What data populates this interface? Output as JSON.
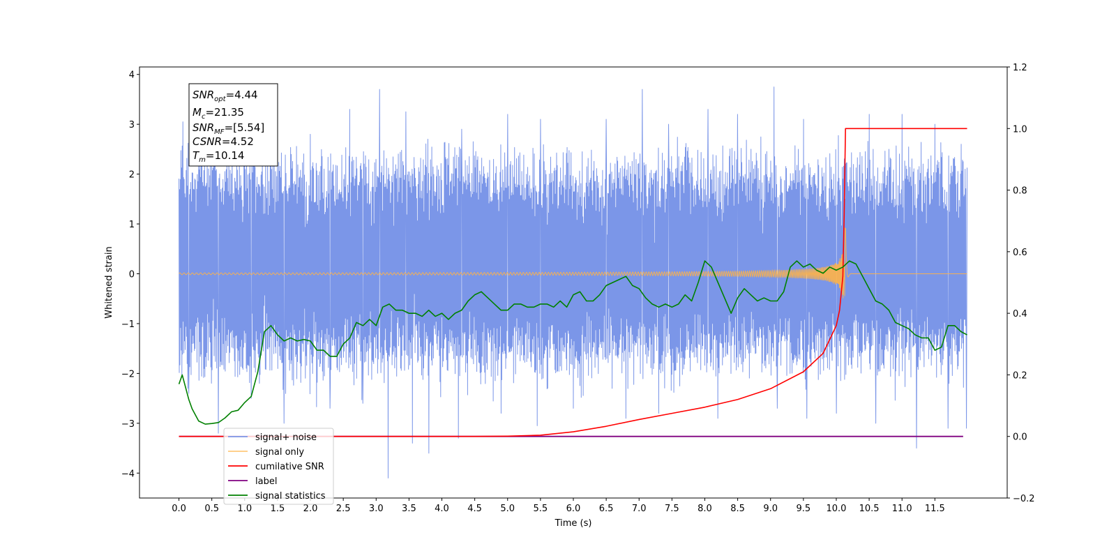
{
  "chart_data": {
    "type": "line",
    "xlabel": "Time (s)",
    "ylabel": "Whitened strain",
    "xlim": [
      -0.6,
      12.6
    ],
    "ylim": [
      -4.5,
      4.15
    ],
    "y2lim": [
      -0.2,
      1.2
    ],
    "x_ticks": [
      0.0,
      0.5,
      1.0,
      1.5,
      2.0,
      2.5,
      3.0,
      3.5,
      4.0,
      4.5,
      5.0,
      5.5,
      6.0,
      6.5,
      7.0,
      7.5,
      8.0,
      8.5,
      9.0,
      9.5,
      10.0,
      10.5,
      11.0,
      11.5
    ],
    "x_tick_labels": [
      "0.0",
      "0.5",
      "1.0",
      "1.5",
      "2.0",
      "2.5",
      "3.0",
      "3.5",
      "4.0",
      "4.5",
      "5.0",
      "5.5",
      "6.0",
      "6.5",
      "7.0",
      "7.5",
      "8.0",
      "8.5",
      "9.0",
      "9.5",
      "10.0",
      "10.5",
      "11.0",
      "11.5"
    ],
    "y_ticks": [
      -4,
      -3,
      -2,
      -1,
      0,
      1,
      2,
      3,
      4
    ],
    "y_tick_labels": [
      "−4",
      "−3",
      "−2",
      "−1",
      "0",
      "1",
      "2",
      "3",
      "4"
    ],
    "y2_ticks": [
      -0.2,
      0.0,
      0.2,
      0.4,
      0.6,
      0.8,
      1.0,
      1.2
    ],
    "y2_tick_labels": [
      "−0.2",
      "0.0",
      "0.2",
      "0.4",
      "0.6",
      "0.8",
      "1.0",
      "1.2"
    ],
    "grid": false,
    "legend_position": "lower-left",
    "info_box": {
      "snr_opt": {
        "symbol": "SNR",
        "sub": "opt",
        "value": "=4.44"
      },
      "mc": {
        "symbol": "M",
        "sub": "c",
        "value": "=21.35"
      },
      "snr_mf": {
        "symbol": "SNR",
        "sub": "MF",
        "value": "=[5.54]"
      },
      "csnr": {
        "symbol": "CSNR",
        "sub": "",
        "value": "=4.52"
      },
      "tm": {
        "symbol": "T",
        "sub": "m",
        "value": "=10.14"
      }
    },
    "series": [
      {
        "name": "signal+ noise",
        "color": "#7b96e8",
        "axis": "left",
        "t_range": [
          0.0,
          11.99
        ],
        "envelope_upper": [
          2.6,
          2.4,
          2.3,
          2.4,
          2.5,
          2.4,
          2.3,
          2.5,
          2.4,
          2.3,
          2.4,
          2.5
        ],
        "envelope_lower": [
          -2.0,
          -2.1,
          -2.2,
          -2.0,
          -2.1,
          -2.2,
          -2.0,
          -2.1,
          -2.1,
          -2.0,
          -2.1,
          -2.0
        ],
        "peaks_up": [
          [
            0.06,
            3.05
          ],
          [
            0.3,
            2.6
          ],
          [
            1.0,
            2.9
          ],
          [
            1.5,
            2.7
          ],
          [
            2.0,
            2.8
          ],
          [
            2.6,
            3.3
          ],
          [
            3.05,
            3.7
          ],
          [
            3.45,
            3.25
          ],
          [
            3.8,
            3.2
          ],
          [
            4.3,
            2.9
          ],
          [
            5.0,
            3.2
          ],
          [
            5.5,
            3.1
          ],
          [
            6.0,
            2.9
          ],
          [
            6.5,
            3.1
          ],
          [
            7.05,
            3.7
          ],
          [
            7.45,
            3.0
          ],
          [
            8.05,
            3.3
          ],
          [
            8.5,
            3.2
          ],
          [
            9.05,
            3.75
          ],
          [
            9.5,
            3.1
          ],
          [
            10.0,
            3.0
          ],
          [
            10.5,
            3.2
          ],
          [
            11.0,
            3.2
          ],
          [
            11.5,
            3.0
          ],
          [
            11.9,
            2.6
          ]
        ],
        "peaks_down": [
          [
            0.15,
            -2.4
          ],
          [
            0.6,
            -3.2
          ],
          [
            1.1,
            -2.5
          ],
          [
            1.6,
            -3.0
          ],
          [
            2.3,
            -2.7
          ],
          [
            2.8,
            -2.6
          ],
          [
            3.18,
            -4.1
          ],
          [
            3.55,
            -3.4
          ],
          [
            3.8,
            -3.6
          ],
          [
            4.25,
            -3.3
          ],
          [
            4.9,
            -2.8
          ],
          [
            5.45,
            -3.05
          ],
          [
            6.0,
            -2.7
          ],
          [
            6.8,
            -2.9
          ],
          [
            7.3,
            -2.8
          ],
          [
            8.2,
            -2.9
          ],
          [
            9.1,
            -2.7
          ],
          [
            9.55,
            -2.9
          ],
          [
            10.0,
            -2.8
          ],
          [
            10.6,
            -3.0
          ],
          [
            11.22,
            -3.5
          ],
          [
            11.7,
            -3.1
          ],
          [
            11.98,
            -3.1
          ]
        ]
      },
      {
        "name": "signal only",
        "color": "#ffb347",
        "axis": "left",
        "t_range": [
          0.0,
          11.99
        ],
        "merger_time": 10.14,
        "peak_amplitude": 0.95
      },
      {
        "name": "cumilative SNR",
        "color": "#ff0000",
        "axis": "right",
        "x": [
          0.0,
          4.5,
          5.0,
          5.5,
          6.0,
          6.5,
          7.0,
          7.5,
          8.0,
          8.5,
          9.0,
          9.5,
          9.8,
          10.0,
          10.05,
          10.1,
          10.12,
          10.14,
          11.99
        ],
        "y": [
          0.0,
          0.0,
          0.001,
          0.004,
          0.015,
          0.033,
          0.055,
          0.075,
          0.095,
          0.12,
          0.155,
          0.21,
          0.27,
          0.36,
          0.41,
          0.52,
          0.72,
          1.0,
          1.0
        ]
      },
      {
        "name": "label",
        "color": "#800080",
        "axis": "right",
        "x": [
          0.0,
          11.93
        ],
        "y": [
          0.0,
          0.0
        ]
      },
      {
        "name": "signal statistics",
        "color": "#008000",
        "axis": "right",
        "x": [
          0.0,
          0.05,
          0.1,
          0.15,
          0.2,
          0.3,
          0.4,
          0.5,
          0.6,
          0.7,
          0.8,
          0.9,
          1.0,
          1.1,
          1.2,
          1.3,
          1.4,
          1.5,
          1.6,
          1.7,
          1.8,
          1.9,
          2.0,
          2.1,
          2.2,
          2.3,
          2.4,
          2.5,
          2.6,
          2.7,
          2.8,
          2.9,
          3.0,
          3.1,
          3.2,
          3.3,
          3.4,
          3.5,
          3.6,
          3.7,
          3.8,
          3.9,
          4.0,
          4.1,
          4.2,
          4.3,
          4.4,
          4.5,
          4.6,
          4.7,
          4.8,
          4.9,
          5.0,
          5.1,
          5.2,
          5.3,
          5.4,
          5.5,
          5.6,
          5.7,
          5.8,
          5.9,
          6.0,
          6.1,
          6.2,
          6.3,
          6.4,
          6.5,
          6.6,
          6.7,
          6.8,
          6.9,
          7.0,
          7.1,
          7.2,
          7.3,
          7.4,
          7.5,
          7.6,
          7.7,
          7.8,
          7.9,
          8.0,
          8.1,
          8.2,
          8.3,
          8.4,
          8.5,
          8.6,
          8.7,
          8.8,
          8.9,
          9.0,
          9.1,
          9.2,
          9.3,
          9.4,
          9.5,
          9.6,
          9.7,
          9.8,
          9.9,
          10.0,
          10.1,
          10.2,
          10.3,
          10.4,
          10.5,
          10.6,
          10.7,
          10.8,
          10.9,
          11.0,
          11.1,
          11.2,
          11.3,
          11.4,
          11.5,
          11.6,
          11.7,
          11.8,
          11.9,
          11.99
        ],
        "y": [
          0.17,
          0.2,
          0.16,
          0.12,
          0.09,
          0.05,
          0.04,
          0.042,
          0.045,
          0.06,
          0.08,
          0.085,
          0.11,
          0.13,
          0.21,
          0.34,
          0.36,
          0.33,
          0.31,
          0.32,
          0.31,
          0.315,
          0.31,
          0.28,
          0.28,
          0.26,
          0.26,
          0.3,
          0.32,
          0.37,
          0.36,
          0.38,
          0.36,
          0.42,
          0.43,
          0.41,
          0.41,
          0.4,
          0.4,
          0.39,
          0.41,
          0.39,
          0.4,
          0.38,
          0.4,
          0.41,
          0.44,
          0.46,
          0.47,
          0.45,
          0.43,
          0.41,
          0.41,
          0.43,
          0.43,
          0.42,
          0.42,
          0.43,
          0.43,
          0.42,
          0.44,
          0.42,
          0.46,
          0.47,
          0.44,
          0.44,
          0.46,
          0.49,
          0.5,
          0.51,
          0.52,
          0.49,
          0.48,
          0.45,
          0.43,
          0.42,
          0.43,
          0.42,
          0.43,
          0.46,
          0.44,
          0.5,
          0.57,
          0.55,
          0.5,
          0.45,
          0.4,
          0.45,
          0.48,
          0.46,
          0.44,
          0.45,
          0.44,
          0.44,
          0.47,
          0.55,
          0.57,
          0.55,
          0.56,
          0.54,
          0.53,
          0.55,
          0.54,
          0.55,
          0.57,
          0.56,
          0.52,
          0.48,
          0.44,
          0.43,
          0.41,
          0.37,
          0.36,
          0.35,
          0.33,
          0.32,
          0.32,
          0.28,
          0.29,
          0.36,
          0.36,
          0.34,
          0.33
        ]
      }
    ]
  }
}
